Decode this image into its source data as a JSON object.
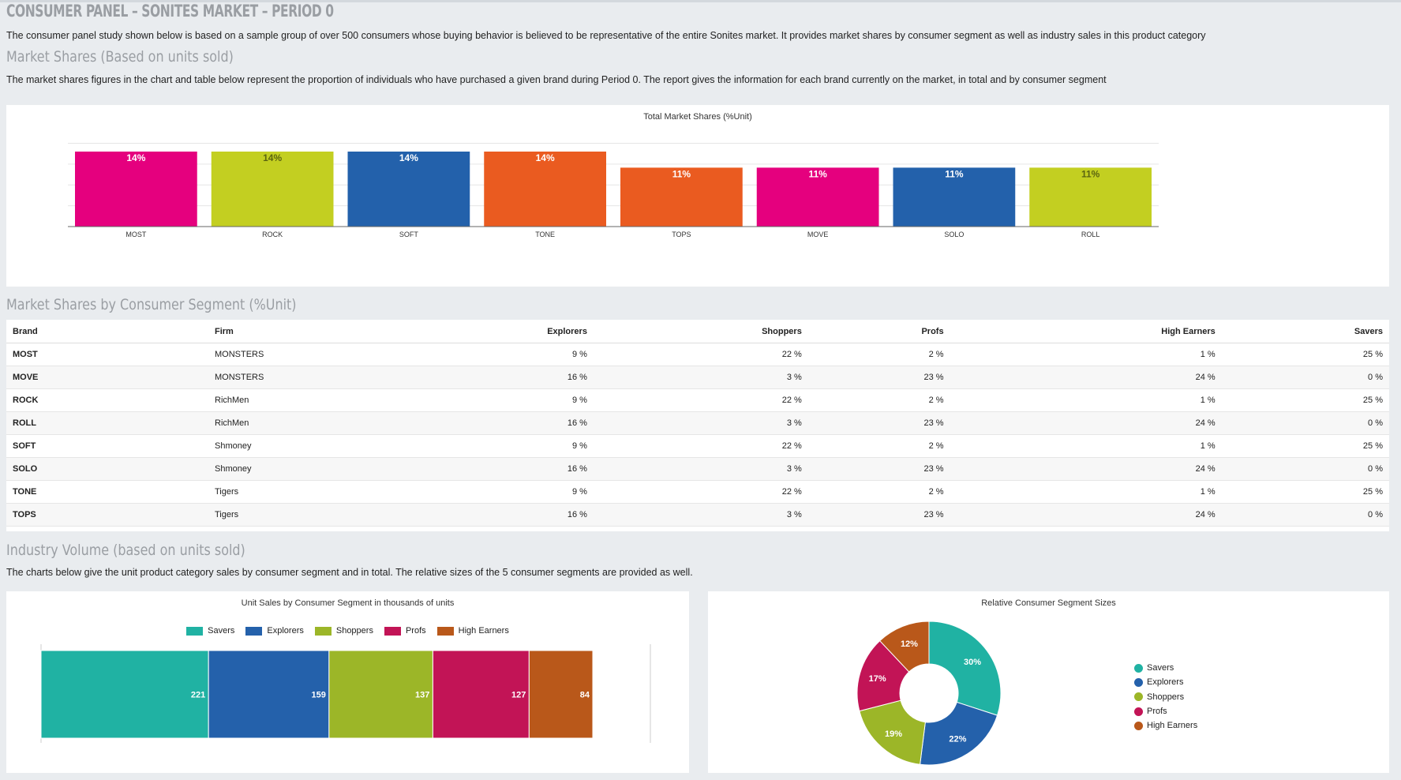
{
  "header": {
    "title": "CONSUMER PANEL – SONITES MARKET – PERIOD 0",
    "intro": "The consumer panel study shown below is based on a sample group of over 500 consumers whose buying behavior is believed to be representative of the entire Sonites market. It provides market shares by consumer segment as well as industry sales in this product category"
  },
  "market_shares": {
    "title": "Market Shares (Based on units sold)",
    "description": "The market shares figures in the chart and table below represent the proportion of individuals who have purchased a given brand during Period 0. The report gives the information for each brand currently on the market, in total and by consumer segment"
  },
  "segment_table": {
    "title": "Market Shares by Consumer Segment (%Unit)",
    "columns": [
      "Brand",
      "Firm",
      "Explorers",
      "Shoppers",
      "Profs",
      "High Earners",
      "Savers"
    ],
    "rows": [
      [
        "MOST",
        "MONSTERS",
        "9 %",
        "22 %",
        "2 %",
        "1 %",
        "25 %"
      ],
      [
        "MOVE",
        "MONSTERS",
        "16 %",
        "3 %",
        "23 %",
        "24 %",
        "0 %"
      ],
      [
        "ROCK",
        "RichMen",
        "9 %",
        "22 %",
        "2 %",
        "1 %",
        "25 %"
      ],
      [
        "ROLL",
        "RichMen",
        "16 %",
        "3 %",
        "23 %",
        "24 %",
        "0 %"
      ],
      [
        "SOFT",
        "Shmoney",
        "9 %",
        "22 %",
        "2 %",
        "1 %",
        "25 %"
      ],
      [
        "SOLO",
        "Shmoney",
        "16 %",
        "3 %",
        "23 %",
        "24 %",
        "0 %"
      ],
      [
        "TONE",
        "Tigers",
        "9 %",
        "22 %",
        "2 %",
        "1 %",
        "25 %"
      ],
      [
        "TOPS",
        "Tigers",
        "16 %",
        "3 %",
        "23 %",
        "24 %",
        "0 %"
      ]
    ]
  },
  "industry": {
    "title": "Industry Volume (based on units sold)",
    "description": "The charts below give the unit product category sales by consumer segment and in total. The relative sizes of the 5 consumer segments are provided as well."
  },
  "chart_data": [
    {
      "type": "bar",
      "title": "Total Market Shares (%Unit)",
      "categories": [
        "MOST",
        "ROCK",
        "SOFT",
        "TONE",
        "TOPS",
        "MOVE",
        "SOLO",
        "ROLL"
      ],
      "values": [
        14,
        14,
        14,
        14,
        11,
        11,
        11,
        11
      ],
      "labels": [
        "14%",
        "14%",
        "14%",
        "14%",
        "11%",
        "11%",
        "11%",
        "11%"
      ],
      "colors": [
        "#e5007e",
        "#c3cf21",
        "#2361ab",
        "#ea5b20",
        "#ea5b20",
        "#e5007e",
        "#2361ab",
        "#c3cf21"
      ],
      "label_colors": [
        "#ffffff",
        "#5b6410",
        "#ffffff",
        "#ffffff",
        "#ffffff",
        "#ffffff",
        "#ffffff",
        "#5b6410"
      ],
      "ylim": [
        0,
        14
      ],
      "grid": true
    },
    {
      "type": "bar",
      "orientation": "horizontal-stacked",
      "title": "Unit Sales by Consumer Segment in thousands of units",
      "series": [
        {
          "name": "Savers",
          "value": 221,
          "color": "#20b2a3"
        },
        {
          "name": "Explorers",
          "value": 159,
          "color": "#2461ab"
        },
        {
          "name": "Shoppers",
          "value": 137,
          "color": "#9cb628"
        },
        {
          "name": "Profs",
          "value": 127,
          "color": "#c21456"
        },
        {
          "name": "High Earners",
          "value": 84,
          "color": "#b9581a"
        }
      ],
      "legend": "top"
    },
    {
      "type": "pie",
      "style": "donut",
      "title": "Relative Consumer Segment Sizes",
      "slices": [
        {
          "name": "Savers",
          "value": 30,
          "label": "30%",
          "color": "#20b2a3"
        },
        {
          "name": "Explorers",
          "value": 22,
          "label": "22%",
          "color": "#2461ab"
        },
        {
          "name": "Shoppers",
          "value": 19,
          "label": "19%",
          "color": "#9cb628"
        },
        {
          "name": "Profs",
          "value": 17,
          "label": "17%",
          "color": "#c21456"
        },
        {
          "name": "High Earners",
          "value": 12,
          "label": "12%",
          "color": "#b9581a"
        }
      ],
      "legend": "right"
    }
  ]
}
